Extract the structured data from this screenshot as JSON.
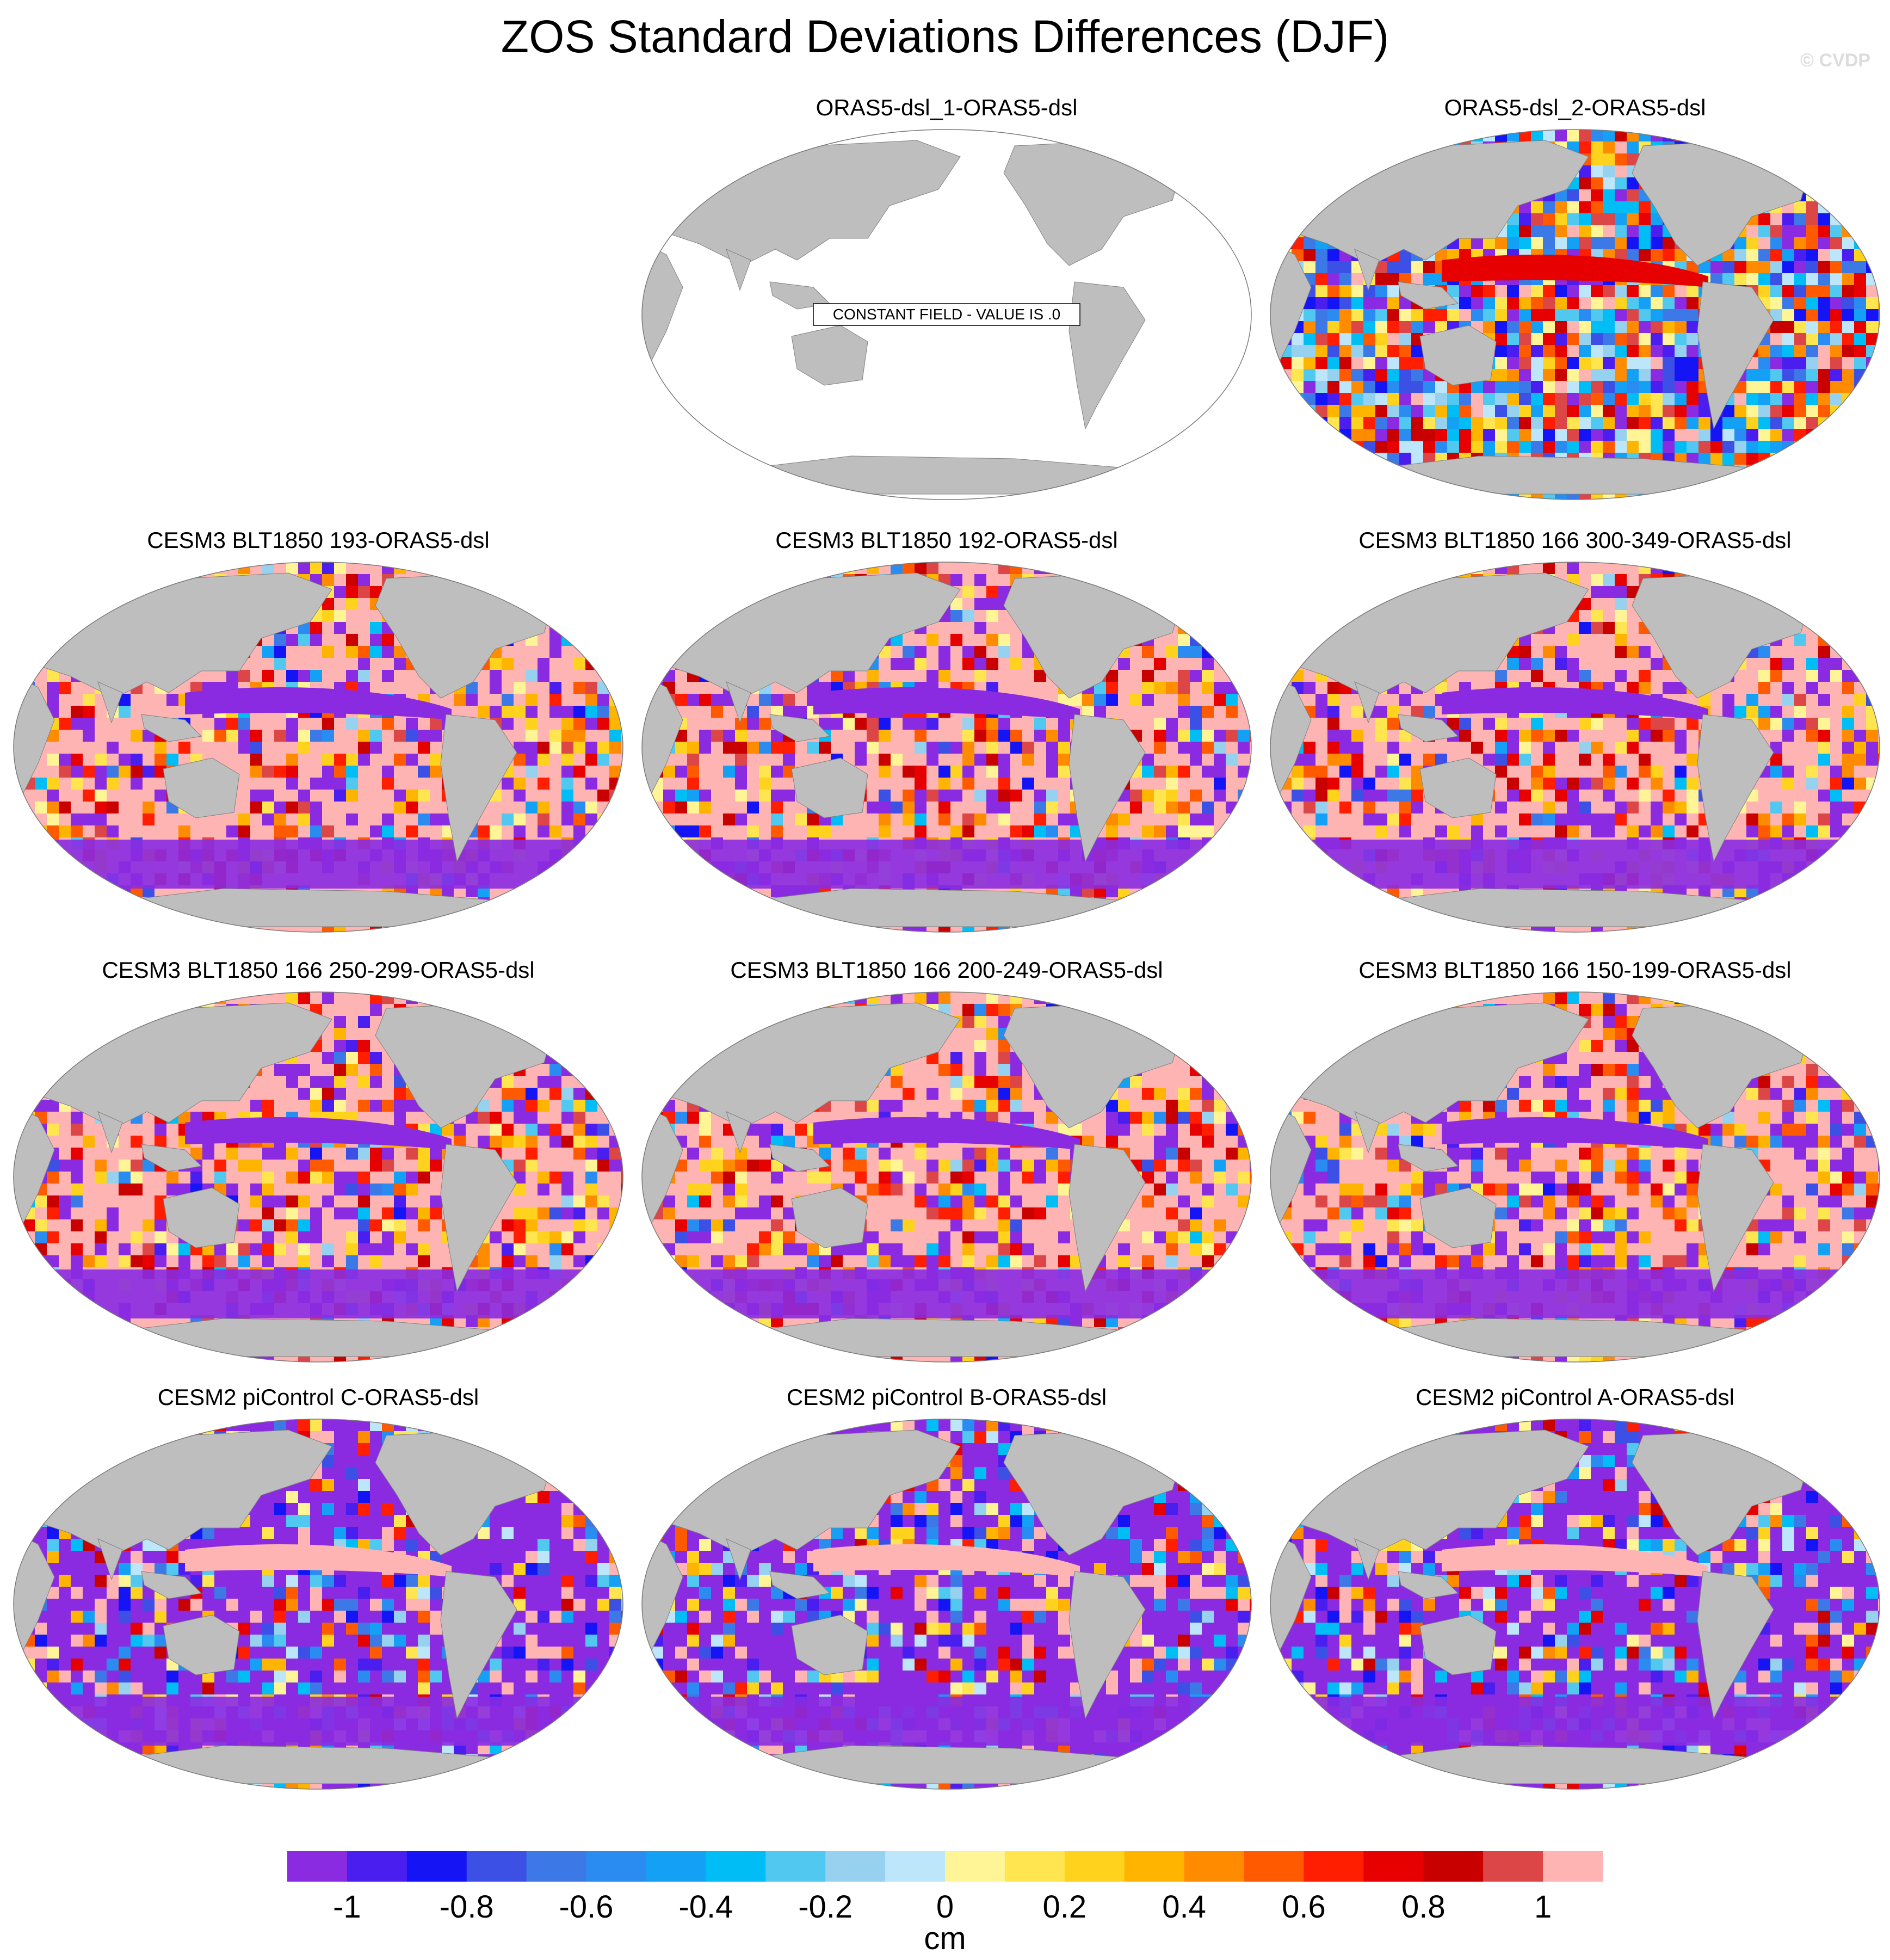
{
  "title": "ZOS Standard Deviations Differences (DJF)",
  "watermark": "© CVDP",
  "panels": [
    {
      "title": "ORAS5-dsl_1-ORAS5-dsl",
      "note": "CONSTANT FIELD - VALUE IS .0",
      "pattern": "constant"
    },
    {
      "title": "ORAS5-dsl_2-ORAS5-dsl",
      "pattern": "mixed"
    },
    {
      "title": "CESM3 BLT1850 193-ORAS5-dsl",
      "pattern": "positive"
    },
    {
      "title": "CESM3 BLT1850 192-ORAS5-dsl",
      "pattern": "positive"
    },
    {
      "title": "CESM3 BLT1850 166 300-349-ORAS5-dsl",
      "pattern": "positive"
    },
    {
      "title": "CESM3 BLT1850 166 250-299-ORAS5-dsl",
      "pattern": "positive"
    },
    {
      "title": "CESM3 BLT1850 166 200-249-ORAS5-dsl",
      "pattern": "positive"
    },
    {
      "title": "CESM3 BLT1850 166 150-199-ORAS5-dsl",
      "pattern": "positive"
    },
    {
      "title": "CESM2 piControl C-ORAS5-dsl",
      "pattern": "negative"
    },
    {
      "title": "CESM2 piControl B-ORAS5-dsl",
      "pattern": "negative"
    },
    {
      "title": "CESM2 piControl A-ORAS5-dsl",
      "pattern": "negative"
    }
  ],
  "colorbar": {
    "unit": "cm",
    "tick_labels": [
      "-1",
      "-0.8",
      "-0.6",
      "-0.4",
      "-0.2",
      "0",
      "0.2",
      "0.4",
      "0.6",
      "0.8",
      "1"
    ],
    "colors": [
      "#8a2be2",
      "#4b1ef0",
      "#1414f5",
      "#3c50e6",
      "#3c78e6",
      "#2a8cf0",
      "#14a0f5",
      "#00bef5",
      "#50c8f0",
      "#96d2f0",
      "#bee6fa",
      "#fff596",
      "#ffe650",
      "#ffd21e",
      "#ffb400",
      "#ff8c00",
      "#ff5a00",
      "#ff1e00",
      "#e60000",
      "#c80000",
      "#dc4646",
      "#ffb4b4"
    ],
    "land_color": "#bebebe",
    "ocean_blank_color": "#ffffff"
  }
}
